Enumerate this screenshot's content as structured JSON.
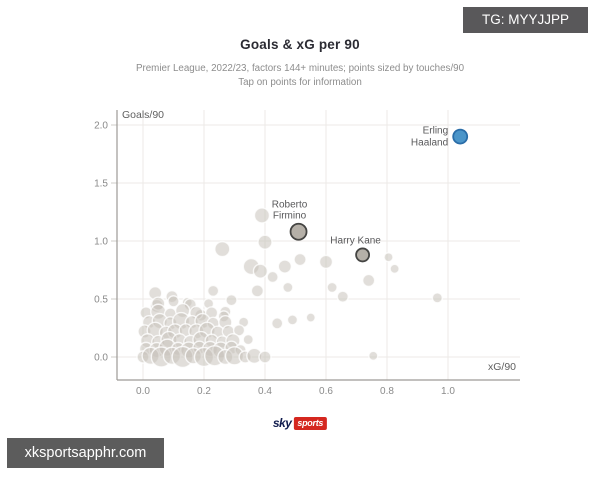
{
  "watermarks": {
    "top_right": "TG: MYYJJPP",
    "bottom_left": "xksportsapphr.com"
  },
  "footer": {
    "logo_sky": "sky",
    "logo_sports": "sports"
  },
  "chart_data": {
    "type": "scatter",
    "title": "Goals & xG per 90",
    "subtitle_line1": "Premier League, 2022/23, factors 144+ minutes; points sized by touches/90",
    "subtitle_line2": "Tap on points for information",
    "xlabel": "xG/90",
    "ylabel": "Goals/90",
    "xlim": [
      -0.09,
      1.24
    ],
    "ylim": [
      -0.2,
      2.13
    ],
    "x_ticks": [
      0.0,
      0.2,
      0.4,
      0.6,
      0.8,
      1.0
    ],
    "y_ticks": [
      0.0,
      0.5,
      1.0,
      1.5,
      2.0
    ],
    "grid": true,
    "legend": "none",
    "colors": {
      "point_fill": "#c9c3bb",
      "point_stroke": "#ffffff",
      "highlight_fill": "#b5b0a8",
      "highlight_stroke": "#454543",
      "haaland_fill": "#4b95c9",
      "haaland_stroke": "#2a6da8"
    },
    "highlighted": [
      {
        "name": "Erling Haaland",
        "label_lines": [
          "Erling",
          "Haaland"
        ],
        "x": 1.04,
        "y": 1.9,
        "r": 7,
        "fill": "#4b95c9",
        "stroke": "#2a6da8",
        "label_side": "left",
        "label_dx": 0
      },
      {
        "name": "Roberto Firmino",
        "label_lines": [
          "Roberto",
          "Firmino"
        ],
        "x": 0.51,
        "y": 1.08,
        "r": 8,
        "fill": "#b5b0a8",
        "stroke": "#454543",
        "label_side": "above",
        "label_dx": -9
      },
      {
        "name": "Harry Kane",
        "label_lines": [
          "Harry Kane"
        ],
        "x": 0.72,
        "y": 0.88,
        "r": 6.5,
        "fill": "#b5b0a8",
        "stroke": "#454543",
        "label_side": "above",
        "label_dx": -7
      }
    ],
    "points": [
      [
        0.39,
        1.22,
        7.5
      ],
      [
        0.4,
        0.99,
        7
      ],
      [
        0.26,
        0.93,
        7.5
      ],
      [
        0.355,
        0.78,
        8
      ],
      [
        0.385,
        0.74,
        7
      ],
      [
        0.425,
        0.69,
        5.5
      ],
      [
        0.465,
        0.78,
        6.5
      ],
      [
        0.515,
        0.84,
        6
      ],
      [
        0.6,
        0.82,
        6.5
      ],
      [
        0.805,
        0.86,
        4.5
      ],
      [
        0.825,
        0.76,
        4.5
      ],
      [
        0.74,
        0.66,
        6
      ],
      [
        0.475,
        0.6,
        5
      ],
      [
        0.62,
        0.6,
        5
      ],
      [
        0.655,
        0.52,
        5.5
      ],
      [
        0.965,
        0.51,
        5
      ],
      [
        0.755,
        0.01,
        4.5
      ],
      [
        0.23,
        0.57,
        5.5
      ],
      [
        0.375,
        0.57,
        6
      ],
      [
        0.04,
        0.55,
        6.5
      ],
      [
        0.095,
        0.52,
        6
      ],
      [
        0.145,
        0.47,
        5
      ],
      [
        0.045,
        0.44,
        6.5
      ],
      [
        0.19,
        0.36,
        6
      ],
      [
        0.27,
        0.39,
        5.5
      ],
      [
        0.29,
        0.49,
        5.5
      ],
      [
        0.44,
        0.29,
        5.5
      ],
      [
        0.49,
        0.32,
        5
      ],
      [
        0.55,
        0.34,
        4.5
      ],
      [
        0.05,
        0.46,
        6.5
      ],
      [
        0.1,
        0.48,
        5.5
      ],
      [
        0.155,
        0.45,
        6
      ],
      [
        0.215,
        0.46,
        5
      ],
      [
        0.01,
        0.38,
        6
      ],
      [
        0.05,
        0.39,
        7.5
      ],
      [
        0.09,
        0.37,
        6
      ],
      [
        0.13,
        0.4,
        7
      ],
      [
        0.175,
        0.38,
        6.5
      ],
      [
        0.225,
        0.38,
        6
      ],
      [
        0.265,
        0.35,
        5.5
      ],
      [
        0.02,
        0.3,
        6.5
      ],
      [
        0.055,
        0.31,
        7.5
      ],
      [
        0.09,
        0.29,
        6.5
      ],
      [
        0.125,
        0.31,
        8.5
      ],
      [
        0.16,
        0.3,
        6.5
      ],
      [
        0.195,
        0.31,
        7.5
      ],
      [
        0.23,
        0.29,
        6
      ],
      [
        0.27,
        0.3,
        6.5
      ],
      [
        0.33,
        0.3,
        5
      ],
      [
        0.005,
        0.22,
        6.5
      ],
      [
        0.04,
        0.23,
        8
      ],
      [
        0.075,
        0.21,
        6.5
      ],
      [
        0.105,
        0.22,
        7.5
      ],
      [
        0.14,
        0.23,
        6.5
      ],
      [
        0.175,
        0.22,
        7.5
      ],
      [
        0.21,
        0.23,
        8
      ],
      [
        0.245,
        0.21,
        6.5
      ],
      [
        0.28,
        0.22,
        6
      ],
      [
        0.315,
        0.23,
        5.5
      ],
      [
        0.015,
        0.14,
        7
      ],
      [
        0.05,
        0.13,
        6.5
      ],
      [
        0.085,
        0.15,
        8
      ],
      [
        0.12,
        0.14,
        7
      ],
      [
        0.155,
        0.13,
        6.5
      ],
      [
        0.19,
        0.15,
        8
      ],
      [
        0.225,
        0.14,
        6.5
      ],
      [
        0.26,
        0.13,
        6
      ],
      [
        0.295,
        0.14,
        7
      ],
      [
        0.345,
        0.15,
        5
      ],
      [
        0.01,
        0.07,
        6.5
      ],
      [
        0.045,
        0.06,
        7.5
      ],
      [
        0.08,
        0.08,
        8.5
      ],
      [
        0.115,
        0.07,
        6.5
      ],
      [
        0.15,
        0.06,
        8
      ],
      [
        0.185,
        0.08,
        6.5
      ],
      [
        0.22,
        0.07,
        7.5
      ],
      [
        0.255,
        0.06,
        8
      ],
      [
        0.29,
        0.08,
        6.5
      ],
      [
        0.32,
        0.06,
        5.5
      ],
      [
        0.0,
        0.0,
        6
      ],
      [
        0.025,
        0.01,
        8.5
      ],
      [
        0.06,
        0.0,
        10
      ],
      [
        0.095,
        0.01,
        8.5
      ],
      [
        0.13,
        0.0,
        10.5
      ],
      [
        0.165,
        0.01,
        8
      ],
      [
        0.2,
        0.0,
        9.5
      ],
      [
        0.235,
        0.01,
        10
      ],
      [
        0.27,
        0.0,
        7.5
      ],
      [
        0.3,
        0.01,
        9
      ],
      [
        0.335,
        0.0,
        6
      ],
      [
        0.365,
        0.01,
        7.5
      ],
      [
        0.4,
        0.0,
        6
      ]
    ]
  }
}
